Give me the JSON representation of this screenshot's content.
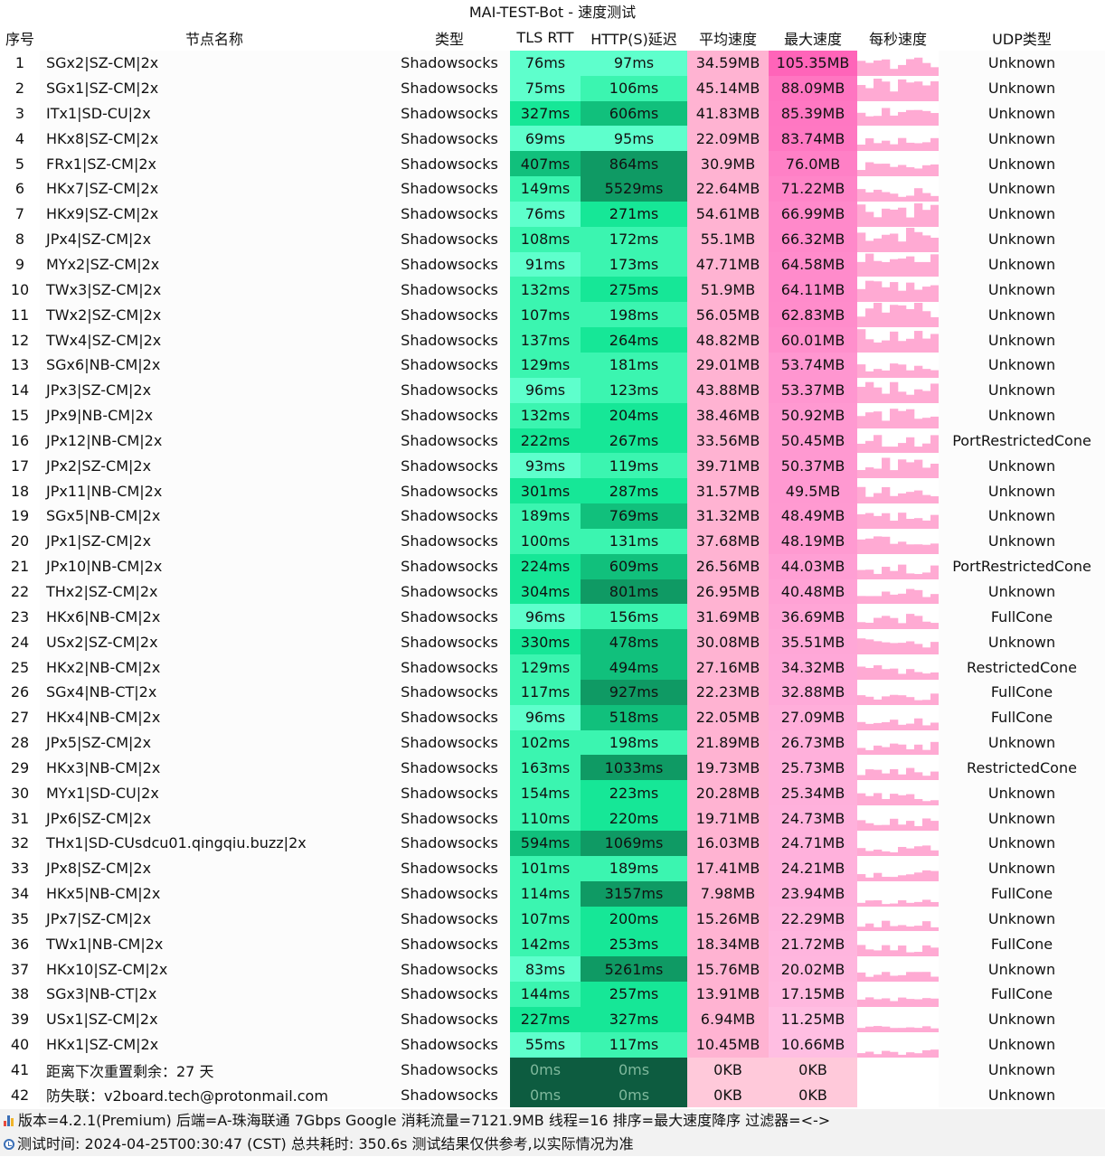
{
  "title": "MAI-TEST-Bot - 速度测试",
  "headers": {
    "idx": "序号",
    "name": "节点名称",
    "type": "类型",
    "tls": "TLS RTT",
    "http": "HTTP(S)延迟",
    "avg": "平均速度",
    "max": "最大速度",
    "persec": "每秒速度",
    "udp": "UDP类型"
  },
  "rows": [
    {
      "idx": "1",
      "name": "SGx2|SZ-CM|2x",
      "type": "Shadowsocks",
      "tls": "76ms",
      "http": "97ms",
      "avg": "34.59MB",
      "max": "105.35MB",
      "udp": "Unknown"
    },
    {
      "idx": "2",
      "name": "SGx1|SZ-CM|2x",
      "type": "Shadowsocks",
      "tls": "75ms",
      "http": "106ms",
      "avg": "45.14MB",
      "max": "88.09MB",
      "udp": "Unknown"
    },
    {
      "idx": "3",
      "name": "ITx1|SD-CU|2x",
      "type": "Shadowsocks",
      "tls": "327ms",
      "http": "606ms",
      "avg": "41.83MB",
      "max": "85.39MB",
      "udp": "Unknown"
    },
    {
      "idx": "4",
      "name": "HKx8|SZ-CM|2x",
      "type": "Shadowsocks",
      "tls": "69ms",
      "http": "95ms",
      "avg": "22.09MB",
      "max": "83.74MB",
      "udp": "Unknown"
    },
    {
      "idx": "5",
      "name": "FRx1|SZ-CM|2x",
      "type": "Shadowsocks",
      "tls": "407ms",
      "http": "864ms",
      "avg": "30.9MB",
      "max": "76.0MB",
      "udp": "Unknown"
    },
    {
      "idx": "6",
      "name": "HKx7|SZ-CM|2x",
      "type": "Shadowsocks",
      "tls": "149ms",
      "http": "5529ms",
      "avg": "22.64MB",
      "max": "71.22MB",
      "udp": "Unknown"
    },
    {
      "idx": "7",
      "name": "HKx9|SZ-CM|2x",
      "type": "Shadowsocks",
      "tls": "76ms",
      "http": "271ms",
      "avg": "54.61MB",
      "max": "66.99MB",
      "udp": "Unknown"
    },
    {
      "idx": "8",
      "name": "JPx4|SZ-CM|2x",
      "type": "Shadowsocks",
      "tls": "108ms",
      "http": "172ms",
      "avg": "55.1MB",
      "max": "66.32MB",
      "udp": "Unknown"
    },
    {
      "idx": "9",
      "name": "MYx2|SZ-CM|2x",
      "type": "Shadowsocks",
      "tls": "91ms",
      "http": "173ms",
      "avg": "47.71MB",
      "max": "64.58MB",
      "udp": "Unknown"
    },
    {
      "idx": "10",
      "name": "TWx3|SZ-CM|2x",
      "type": "Shadowsocks",
      "tls": "132ms",
      "http": "275ms",
      "avg": "51.9MB",
      "max": "64.11MB",
      "udp": "Unknown"
    },
    {
      "idx": "11",
      "name": "TWx2|SZ-CM|2x",
      "type": "Shadowsocks",
      "tls": "107ms",
      "http": "198ms",
      "avg": "56.05MB",
      "max": "62.83MB",
      "udp": "Unknown"
    },
    {
      "idx": "12",
      "name": "TWx4|SZ-CM|2x",
      "type": "Shadowsocks",
      "tls": "137ms",
      "http": "264ms",
      "avg": "48.82MB",
      "max": "60.01MB",
      "udp": "Unknown"
    },
    {
      "idx": "13",
      "name": "SGx6|NB-CM|2x",
      "type": "Shadowsocks",
      "tls": "129ms",
      "http": "181ms",
      "avg": "29.01MB",
      "max": "53.74MB",
      "udp": "Unknown"
    },
    {
      "idx": "14",
      "name": "JPx3|SZ-CM|2x",
      "type": "Shadowsocks",
      "tls": "96ms",
      "http": "123ms",
      "avg": "43.88MB",
      "max": "53.37MB",
      "udp": "Unknown"
    },
    {
      "idx": "15",
      "name": "JPx9|NB-CM|2x",
      "type": "Shadowsocks",
      "tls": "132ms",
      "http": "204ms",
      "avg": "38.46MB",
      "max": "50.92MB",
      "udp": "Unknown"
    },
    {
      "idx": "16",
      "name": "JPx12|NB-CM|2x",
      "type": "Shadowsocks",
      "tls": "222ms",
      "http": "267ms",
      "avg": "33.56MB",
      "max": "50.45MB",
      "udp": "PortRestrictedCone"
    },
    {
      "idx": "17",
      "name": "JPx2|SZ-CM|2x",
      "type": "Shadowsocks",
      "tls": "93ms",
      "http": "119ms",
      "avg": "39.71MB",
      "max": "50.37MB",
      "udp": "Unknown"
    },
    {
      "idx": "18",
      "name": "JPx11|NB-CM|2x",
      "type": "Shadowsocks",
      "tls": "301ms",
      "http": "287ms",
      "avg": "31.57MB",
      "max": "49.5MB",
      "udp": "Unknown"
    },
    {
      "idx": "19",
      "name": "SGx5|NB-CM|2x",
      "type": "Shadowsocks",
      "tls": "189ms",
      "http": "769ms",
      "avg": "31.32MB",
      "max": "48.49MB",
      "udp": "Unknown"
    },
    {
      "idx": "20",
      "name": "JPx1|SZ-CM|2x",
      "type": "Shadowsocks",
      "tls": "100ms",
      "http": "131ms",
      "avg": "37.68MB",
      "max": "48.19MB",
      "udp": "Unknown"
    },
    {
      "idx": "21",
      "name": "JPx10|NB-CM|2x",
      "type": "Shadowsocks",
      "tls": "224ms",
      "http": "609ms",
      "avg": "26.56MB",
      "max": "44.03MB",
      "udp": "PortRestrictedCone"
    },
    {
      "idx": "22",
      "name": "THx2|SZ-CM|2x",
      "type": "Shadowsocks",
      "tls": "304ms",
      "http": "801ms",
      "avg": "26.95MB",
      "max": "40.48MB",
      "udp": "Unknown"
    },
    {
      "idx": "23",
      "name": "HKx6|NB-CM|2x",
      "type": "Shadowsocks",
      "tls": "96ms",
      "http": "156ms",
      "avg": "31.69MB",
      "max": "36.69MB",
      "udp": "FullCone"
    },
    {
      "idx": "24",
      "name": "USx2|SZ-CM|2x",
      "type": "Shadowsocks",
      "tls": "330ms",
      "http": "478ms",
      "avg": "30.08MB",
      "max": "35.51MB",
      "udp": "Unknown"
    },
    {
      "idx": "25",
      "name": "HKx2|NB-CM|2x",
      "type": "Shadowsocks",
      "tls": "129ms",
      "http": "494ms",
      "avg": "27.16MB",
      "max": "34.32MB",
      "udp": "RestrictedCone"
    },
    {
      "idx": "26",
      "name": "SGx4|NB-CT|2x",
      "type": "Shadowsocks",
      "tls": "117ms",
      "http": "927ms",
      "avg": "22.23MB",
      "max": "32.88MB",
      "udp": "FullCone"
    },
    {
      "idx": "27",
      "name": "HKx4|NB-CM|2x",
      "type": "Shadowsocks",
      "tls": "96ms",
      "http": "518ms",
      "avg": "22.05MB",
      "max": "27.09MB",
      "udp": "FullCone"
    },
    {
      "idx": "28",
      "name": "JPx5|SZ-CM|2x",
      "type": "Shadowsocks",
      "tls": "102ms",
      "http": "198ms",
      "avg": "21.89MB",
      "max": "26.73MB",
      "udp": "Unknown"
    },
    {
      "idx": "29",
      "name": "HKx3|NB-CM|2x",
      "type": "Shadowsocks",
      "tls": "163ms",
      "http": "1033ms",
      "avg": "19.73MB",
      "max": "25.73MB",
      "udp": "RestrictedCone"
    },
    {
      "idx": "30",
      "name": "MYx1|SD-CU|2x",
      "type": "Shadowsocks",
      "tls": "154ms",
      "http": "223ms",
      "avg": "20.28MB",
      "max": "25.34MB",
      "udp": "Unknown"
    },
    {
      "idx": "31",
      "name": "JPx6|SZ-CM|2x",
      "type": "Shadowsocks",
      "tls": "110ms",
      "http": "220ms",
      "avg": "19.71MB",
      "max": "24.73MB",
      "udp": "Unknown"
    },
    {
      "idx": "32",
      "name": "THx1|SD-CUsdcu01.qingqiu.buzz|2x",
      "type": "Shadowsocks",
      "tls": "594ms",
      "http": "1069ms",
      "avg": "16.03MB",
      "max": "24.71MB",
      "udp": "Unknown"
    },
    {
      "idx": "33",
      "name": "JPx8|SZ-CM|2x",
      "type": "Shadowsocks",
      "tls": "101ms",
      "http": "189ms",
      "avg": "17.41MB",
      "max": "24.21MB",
      "udp": "Unknown"
    },
    {
      "idx": "34",
      "name": "HKx5|NB-CM|2x",
      "type": "Shadowsocks",
      "tls": "114ms",
      "http": "3157ms",
      "avg": "7.98MB",
      "max": "23.94MB",
      "udp": "FullCone"
    },
    {
      "idx": "35",
      "name": "JPx7|SZ-CM|2x",
      "type": "Shadowsocks",
      "tls": "107ms",
      "http": "200ms",
      "avg": "15.26MB",
      "max": "22.29MB",
      "udp": "Unknown"
    },
    {
      "idx": "36",
      "name": "TWx1|NB-CM|2x",
      "type": "Shadowsocks",
      "tls": "142ms",
      "http": "253ms",
      "avg": "18.34MB",
      "max": "21.72MB",
      "udp": "FullCone"
    },
    {
      "idx": "37",
      "name": "HKx10|SZ-CM|2x",
      "type": "Shadowsocks",
      "tls": "83ms",
      "http": "5261ms",
      "avg": "15.76MB",
      "max": "20.02MB",
      "udp": "Unknown"
    },
    {
      "idx": "38",
      "name": "SGx3|NB-CT|2x",
      "type": "Shadowsocks",
      "tls": "144ms",
      "http": "257ms",
      "avg": "13.91MB",
      "max": "17.15MB",
      "udp": "FullCone"
    },
    {
      "idx": "39",
      "name": "USx1|SZ-CM|2x",
      "type": "Shadowsocks",
      "tls": "227ms",
      "http": "327ms",
      "avg": "6.94MB",
      "max": "11.25MB",
      "udp": "Unknown"
    },
    {
      "idx": "40",
      "name": "HKx1|SZ-CM|2x",
      "type": "Shadowsocks",
      "tls": "55ms",
      "http": "117ms",
      "avg": "10.45MB",
      "max": "10.66MB",
      "udp": "Unknown"
    },
    {
      "idx": "41",
      "name": "距离下次重置剩余：27 天",
      "type": "Shadowsocks",
      "tls": "0ms",
      "http": "0ms",
      "avg": "0KB",
      "max": "0KB",
      "udp": "Unknown"
    },
    {
      "idx": "42",
      "name": "防失联：v2board.tech@protonmail.com",
      "type": "Shadowsocks",
      "tls": "0ms",
      "http": "0ms",
      "avg": "0KB",
      "max": "0KB",
      "udp": "Unknown"
    }
  ],
  "footer": {
    "line1": "版本=4.2.1(Premium) 后端=A-珠海联通 7Gbps Google 消耗流量=7121.9MB 线程=16 排序=最大速度降序 过滤器=<->",
    "line2": "测试时间: 2024-04-25T00:30:47 (CST) 总共耗时: 350.6s 测试结果仅供参考,以实际情况为准"
  },
  "colors": {
    "green_light": "#5effcc",
    "green_mid": "#3bf5b0",
    "green_base": "#16e797",
    "green_dark": "#11c07c",
    "green_darker": "#0f9a64",
    "green_zero": "#0d5c40",
    "pink_avg": "#ffb3d2",
    "pink_max_strong": "#ff7ac4",
    "pink_zero": "#ffc9da",
    "spark_fill": "#ffaad3"
  }
}
